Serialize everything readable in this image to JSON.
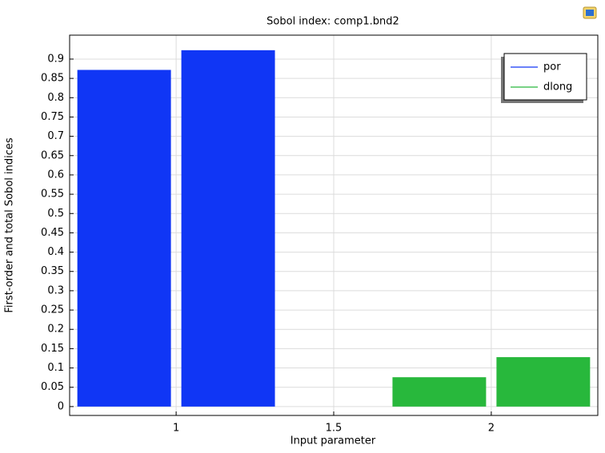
{
  "chart_data": {
    "type": "bar",
    "title": "Sobol index: comp1.bnd2",
    "xlabel": "Input parameter",
    "ylabel": "First-order and total Sobol indices",
    "series": [
      {
        "name": "por",
        "color": "#1036f5",
        "x": 1,
        "values": [
          0.872,
          0.923
        ]
      },
      {
        "name": "dlong",
        "color": "#28b83c",
        "x": 2,
        "values": [
          0.076,
          0.128
        ]
      }
    ],
    "xlim": [
      0.662,
      2.338
    ],
    "xticks": [
      1,
      1.5,
      2
    ],
    "ylim": [
      -0.023,
      0.962
    ],
    "yticks": [
      0,
      0.05,
      0.1,
      0.15,
      0.2,
      0.25,
      0.3,
      0.35,
      0.4,
      0.45,
      0.5,
      0.55,
      0.6,
      0.65,
      0.7,
      0.75,
      0.8,
      0.85,
      0.9
    ],
    "grid": true,
    "legend": "upper right"
  }
}
